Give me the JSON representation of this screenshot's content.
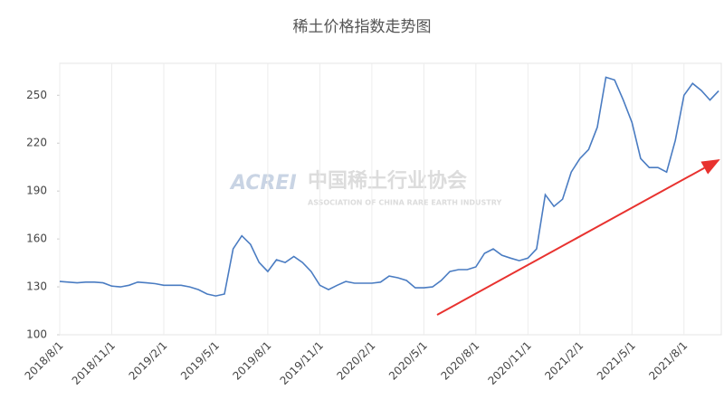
{
  "chart_data": {
    "type": "line",
    "title": "稀土价格指数走势图",
    "watermark": [
      "ACREI",
      "中国稀土行业协会",
      "ASSOCIATION OF CHINA RARE EARTH INDUSTRY"
    ],
    "categories": [
      "2018/8/1",
      null,
      null,
      null,
      null,
      null,
      "2018/11/1",
      null,
      null,
      null,
      null,
      null,
      "2019/2/1",
      null,
      null,
      null,
      null,
      null,
      "2019/5/1",
      null,
      null,
      null,
      null,
      null,
      "2019/8/1",
      null,
      null,
      null,
      null,
      null,
      "2019/11/1",
      null,
      null,
      null,
      null,
      null,
      "2020/2/1",
      null,
      null,
      null,
      null,
      null,
      "2020/5/1",
      null,
      null,
      null,
      null,
      null,
      "2020/8/1",
      null,
      null,
      null,
      null,
      null,
      "2020/11/1",
      null,
      null,
      null,
      null,
      null,
      "2021/2/1",
      null,
      null,
      null,
      null,
      null,
      "2021/5/1",
      null,
      null,
      null,
      null,
      null,
      "2021/8/1",
      null,
      null,
      null,
      null
    ],
    "values": [
      133.4,
      133,
      132.5,
      133,
      133,
      132.5,
      130.5,
      130,
      131,
      133,
      132.5,
      132,
      131,
      131,
      131,
      130,
      128.3,
      125.5,
      124.3,
      125.5,
      153.8,
      162,
      156.6,
      145.3,
      139.6,
      147,
      145.3,
      149,
      145.3,
      139.6,
      131,
      128.3,
      131,
      133.4,
      132.3,
      132.3,
      132.3,
      133,
      136.8,
      135.7,
      134,
      129.4,
      129.4,
      130,
      134,
      139.6,
      140.8,
      140.8,
      142.5,
      151,
      153.8,
      149.8,
      148,
      146.4,
      148,
      153.8,
      187.7,
      180.4,
      184.9,
      201.9,
      210.4,
      216,
      230,
      261.3,
      259.6,
      247,
      233,
      210.4,
      204.7,
      204.7,
      201.9,
      221.7,
      250,
      257.4,
      253,
      247,
      252.8
    ],
    "color": "#4a7cc2",
    "ylim": [
      100,
      270
    ],
    "yticks": [
      100,
      130,
      160,
      190,
      220,
      250
    ],
    "grid": true
  }
}
